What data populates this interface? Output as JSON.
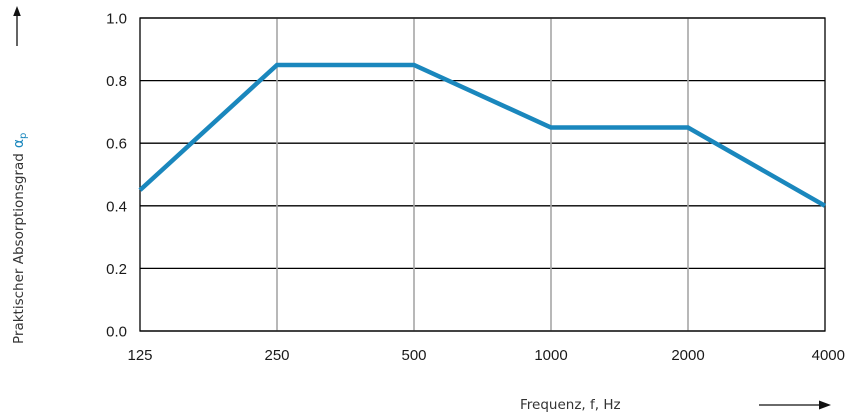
{
  "chart_data": {
    "type": "line",
    "title": "",
    "xlabel": "Frequenz, f, Hz",
    "ylabel": "Praktischer Absorptionsgrad",
    "ylabel_symbol": "α",
    "ylabel_subscript": "p",
    "categories": [
      "125",
      "250",
      "500",
      "1000",
      "2000",
      "4000"
    ],
    "series": [
      {
        "values": [
          0.45,
          0.85,
          0.85,
          0.65,
          0.65,
          0.4
        ]
      }
    ],
    "yticks": [
      "0.0",
      "0.2",
      "0.4",
      "0.6",
      "0.8",
      "1.0"
    ],
    "ylim": [
      0,
      1
    ],
    "grid": true,
    "colors": {
      "line": "#1a87bd",
      "symbol": "#1a87bd",
      "grid_horizontal": "#000000",
      "grid_vertical": "#a6a6a6",
      "frame": "#000000"
    }
  }
}
